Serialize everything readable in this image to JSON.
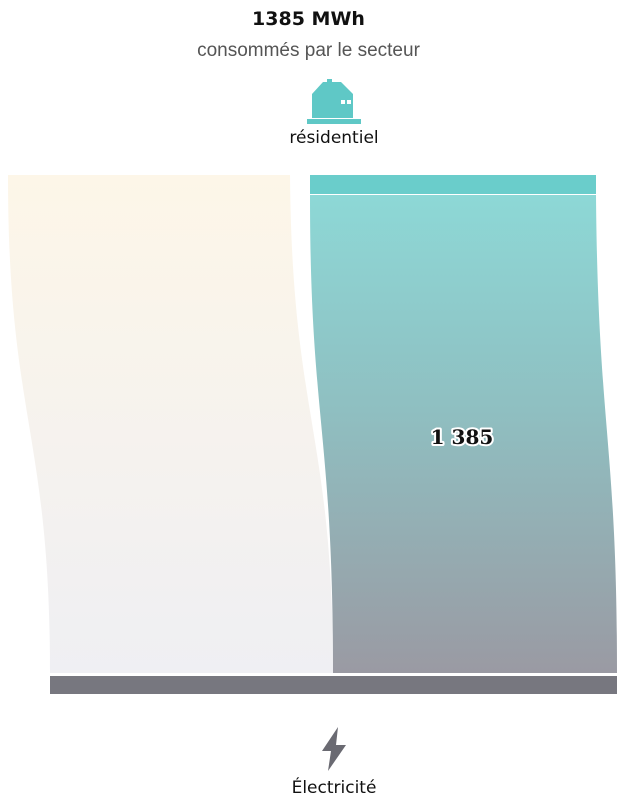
{
  "header": {
    "value": "1385 MWh",
    "subtitle": "consommés par le secteur"
  },
  "sector": {
    "label": "résidentiel",
    "icon": "house-icon",
    "color": "#5fc8c6"
  },
  "source": {
    "label": "Électricité",
    "icon": "lightning-bolt-icon",
    "color": "#77777f"
  },
  "flow": {
    "value_label": "1 385"
  },
  "colors": {
    "flow_top": "#8dd8d6",
    "flow_bottom": "#9a9aa3",
    "background_flow_top": "#fdf6e8",
    "background_flow_bottom": "#efeff3",
    "sector_bar": "#6acdcb",
    "source_bar": "#77777f"
  }
}
